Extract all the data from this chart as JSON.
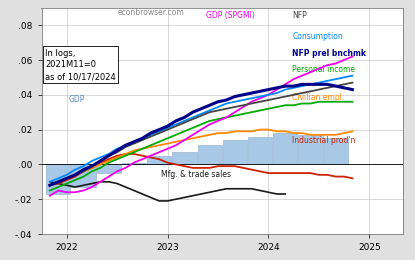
{
  "watermark": "econbrowser.com",
  "annotation": "In logs,\n2021M11=0\nas of 10/17/2024",
  "xlim_start": 2021.75,
  "xlim_end": 2025.33,
  "ylim": [
    -0.04,
    0.09
  ],
  "yticks": [
    -0.04,
    -0.02,
    0.0,
    0.02,
    0.04,
    0.06,
    0.08
  ],
  "bar_color": "#a8c8e8",
  "bar_edge_color": "#88aacc",
  "GDP_bar_x": [
    2021.917,
    2022.167,
    2022.417,
    2022.667,
    2022.917,
    2023.167,
    2023.417,
    2023.667,
    2023.917,
    2024.167,
    2024.417,
    2024.667
  ],
  "GDP_bar_y": [
    -0.017,
    -0.013,
    -0.005,
    0.001,
    0.005,
    0.007,
    0.011,
    0.014,
    0.016,
    0.018,
    0.017,
    0.015
  ],
  "gdp_spgmi_x": [
    2021.833,
    2021.917,
    2022.0,
    2022.083,
    2022.167,
    2022.25,
    2022.333,
    2022.417,
    2022.5,
    2022.583,
    2022.667,
    2022.75,
    2022.833,
    2022.917,
    2023.0,
    2023.083,
    2023.167,
    2023.25,
    2023.333,
    2023.417,
    2023.5,
    2023.583,
    2023.667,
    2023.75,
    2023.833,
    2023.917,
    2024.0,
    2024.083,
    2024.167,
    2024.25,
    2024.333,
    2024.417,
    2024.5,
    2024.583,
    2024.667,
    2024.75,
    2024.833
  ],
  "gdp_spgmi_y": [
    -0.018,
    -0.015,
    -0.016,
    -0.016,
    -0.015,
    -0.013,
    -0.01,
    -0.007,
    -0.004,
    -0.002,
    0.001,
    0.003,
    0.005,
    0.007,
    0.009,
    0.011,
    0.014,
    0.017,
    0.02,
    0.023,
    0.025,
    0.027,
    0.03,
    0.033,
    0.036,
    0.038,
    0.04,
    0.043,
    0.046,
    0.049,
    0.051,
    0.053,
    0.055,
    0.057,
    0.058,
    0.06,
    0.062
  ],
  "nfp_x": [
    2021.833,
    2021.917,
    2022.0,
    2022.083,
    2022.167,
    2022.25,
    2022.333,
    2022.417,
    2022.5,
    2022.583,
    2022.667,
    2022.75,
    2022.833,
    2022.917,
    2023.0,
    2023.083,
    2023.167,
    2023.25,
    2023.333,
    2023.417,
    2023.5,
    2023.583,
    2023.667,
    2023.75,
    2023.833,
    2023.917,
    2024.0,
    2024.083,
    2024.167,
    2024.25,
    2024.333,
    2024.417,
    2024.5,
    2024.583,
    2024.667,
    2024.75,
    2024.833
  ],
  "nfp_y": [
    -0.012,
    -0.01,
    -0.008,
    -0.006,
    -0.004,
    -0.001,
    0.002,
    0.005,
    0.007,
    0.01,
    0.012,
    0.014,
    0.016,
    0.018,
    0.02,
    0.022,
    0.024,
    0.026,
    0.028,
    0.03,
    0.031,
    0.032,
    0.033,
    0.034,
    0.035,
    0.036,
    0.037,
    0.038,
    0.039,
    0.04,
    0.041,
    0.042,
    0.043,
    0.044,
    0.045,
    0.046,
    0.047
  ],
  "consumption_x": [
    2021.833,
    2021.917,
    2022.0,
    2022.083,
    2022.167,
    2022.25,
    2022.333,
    2022.417,
    2022.5,
    2022.583,
    2022.667,
    2022.75,
    2022.833,
    2022.917,
    2023.0,
    2023.083,
    2023.167,
    2023.25,
    2023.333,
    2023.417,
    2023.5,
    2023.583,
    2023.667,
    2023.75,
    2023.833,
    2023.917,
    2024.0,
    2024.083,
    2024.167,
    2024.25,
    2024.333,
    2024.417,
    2024.5,
    2024.583,
    2024.667,
    2024.75,
    2024.833
  ],
  "consumption_y": [
    -0.01,
    -0.008,
    -0.006,
    -0.003,
    -0.001,
    0.002,
    0.004,
    0.006,
    0.009,
    0.011,
    0.013,
    0.015,
    0.017,
    0.019,
    0.021,
    0.023,
    0.025,
    0.027,
    0.029,
    0.031,
    0.033,
    0.035,
    0.036,
    0.037,
    0.038,
    0.039,
    0.04,
    0.041,
    0.043,
    0.044,
    0.045,
    0.046,
    0.047,
    0.048,
    0.049,
    0.05,
    0.051
  ],
  "nfp_prel_x": [
    2021.833,
    2021.917,
    2022.0,
    2022.083,
    2022.167,
    2022.25,
    2022.333,
    2022.417,
    2022.5,
    2022.583,
    2022.667,
    2022.75,
    2022.833,
    2022.917,
    2023.0,
    2023.083,
    2023.167,
    2023.25,
    2023.333,
    2023.417,
    2023.5,
    2023.583,
    2023.667,
    2023.75,
    2023.833,
    2023.917,
    2024.0,
    2024.083,
    2024.167,
    2024.25,
    2024.333,
    2024.417,
    2024.5,
    2024.583,
    2024.667,
    2024.75,
    2024.833
  ],
  "nfp_prel_y": [
    -0.012,
    -0.01,
    -0.008,
    -0.006,
    -0.003,
    -0.001,
    0.002,
    0.005,
    0.008,
    0.011,
    0.013,
    0.015,
    0.018,
    0.02,
    0.022,
    0.025,
    0.027,
    0.03,
    0.032,
    0.034,
    0.036,
    0.037,
    0.039,
    0.04,
    0.041,
    0.042,
    0.043,
    0.044,
    0.045,
    0.045,
    0.046,
    0.046,
    0.046,
    0.046,
    0.045,
    0.044,
    0.043
  ],
  "personal_income_x": [
    2021.833,
    2021.917,
    2022.0,
    2022.083,
    2022.167,
    2022.25,
    2022.333,
    2022.417,
    2022.5,
    2022.583,
    2022.667,
    2022.75,
    2022.833,
    2022.917,
    2023.0,
    2023.083,
    2023.167,
    2023.25,
    2023.333,
    2023.417,
    2023.5,
    2023.583,
    2023.667,
    2023.75,
    2023.833,
    2023.917,
    2024.0,
    2024.083,
    2024.167,
    2024.25,
    2024.333,
    2024.417,
    2024.5,
    2024.583,
    2024.667,
    2024.75,
    2024.833
  ],
  "personal_income_y": [
    -0.015,
    -0.013,
    -0.011,
    -0.009,
    -0.007,
    -0.004,
    -0.002,
    0.001,
    0.003,
    0.005,
    0.007,
    0.009,
    0.011,
    0.013,
    0.015,
    0.017,
    0.019,
    0.021,
    0.023,
    0.025,
    0.026,
    0.027,
    0.028,
    0.029,
    0.03,
    0.031,
    0.032,
    0.033,
    0.034,
    0.034,
    0.035,
    0.035,
    0.036,
    0.036,
    0.036,
    0.036,
    0.036
  ],
  "civilian_empl_x": [
    2021.833,
    2021.917,
    2022.0,
    2022.083,
    2022.167,
    2022.25,
    2022.333,
    2022.417,
    2022.5,
    2022.583,
    2022.667,
    2022.75,
    2022.833,
    2022.917,
    2023.0,
    2023.083,
    2023.167,
    2023.25,
    2023.333,
    2023.417,
    2023.5,
    2023.583,
    2023.667,
    2023.75,
    2023.833,
    2023.917,
    2024.0,
    2024.083,
    2024.167,
    2024.25,
    2024.333,
    2024.417,
    2024.5,
    2024.583,
    2024.667,
    2024.75,
    2024.833
  ],
  "civilian_empl_y": [
    -0.012,
    -0.01,
    -0.008,
    -0.006,
    -0.004,
    -0.002,
    0.0,
    0.002,
    0.004,
    0.006,
    0.008,
    0.009,
    0.01,
    0.011,
    0.012,
    0.013,
    0.014,
    0.015,
    0.016,
    0.017,
    0.018,
    0.018,
    0.019,
    0.019,
    0.019,
    0.02,
    0.02,
    0.019,
    0.019,
    0.018,
    0.018,
    0.017,
    0.017,
    0.017,
    0.017,
    0.018,
    0.019
  ],
  "industrial_prod_x": [
    2021.833,
    2021.917,
    2022.0,
    2022.083,
    2022.167,
    2022.25,
    2022.333,
    2022.417,
    2022.5,
    2022.583,
    2022.667,
    2022.75,
    2022.833,
    2022.917,
    2023.0,
    2023.083,
    2023.167,
    2023.25,
    2023.333,
    2023.417,
    2023.5,
    2023.583,
    2023.667,
    2023.75,
    2023.833,
    2023.917,
    2024.0,
    2024.083,
    2024.167,
    2024.25,
    2024.333,
    2024.417,
    2024.5,
    2024.583,
    2024.667,
    2024.75,
    2024.833
  ],
  "industrial_prod_y": [
    -0.012,
    -0.011,
    -0.009,
    -0.007,
    -0.004,
    -0.002,
    0.001,
    0.003,
    0.005,
    0.006,
    0.006,
    0.005,
    0.004,
    0.003,
    0.001,
    0.0,
    -0.001,
    -0.002,
    -0.002,
    -0.002,
    -0.001,
    -0.001,
    -0.001,
    -0.002,
    -0.003,
    -0.004,
    -0.005,
    -0.005,
    -0.005,
    -0.005,
    -0.005,
    -0.005,
    -0.006,
    -0.006,
    -0.007,
    -0.007,
    -0.008
  ],
  "mfg_trade_x": [
    2021.833,
    2021.917,
    2022.0,
    2022.083,
    2022.167,
    2022.25,
    2022.333,
    2022.417,
    2022.5,
    2022.583,
    2022.667,
    2022.75,
    2022.833,
    2022.917,
    2023.0,
    2023.083,
    2023.167,
    2023.25,
    2023.333,
    2023.417,
    2023.5,
    2023.583,
    2023.667,
    2023.75,
    2023.833,
    2023.917,
    2024.0,
    2024.083,
    2024.167
  ],
  "mfg_trade_y": [
    -0.01,
    -0.011,
    -0.012,
    -0.013,
    -0.012,
    -0.011,
    -0.01,
    -0.01,
    -0.011,
    -0.013,
    -0.015,
    -0.017,
    -0.019,
    -0.021,
    -0.021,
    -0.02,
    -0.019,
    -0.018,
    -0.017,
    -0.016,
    -0.015,
    -0.014,
    -0.014,
    -0.014,
    -0.014,
    -0.015,
    -0.016,
    -0.017,
    -0.017
  ]
}
